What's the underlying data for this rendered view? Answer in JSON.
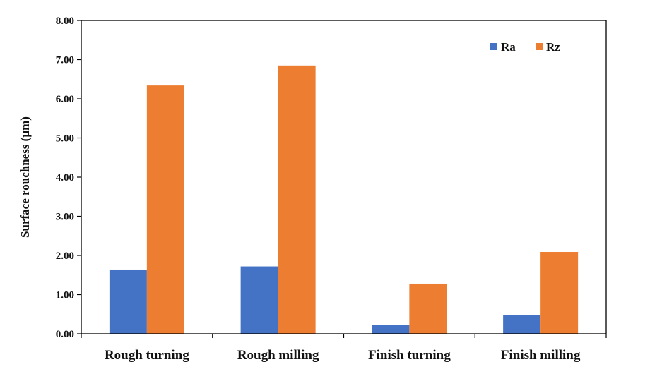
{
  "chart_data": {
    "type": "bar",
    "categories": [
      "Rough turning",
      "Rough milling",
      "Finish turning",
      "Finish milling"
    ],
    "series": [
      {
        "name": "Ra",
        "color": "#4472C4",
        "values": [
          1.64,
          1.72,
          0.23,
          0.48
        ]
      },
      {
        "name": "Rz",
        "color": "#ED7D31",
        "values": [
          6.34,
          6.85,
          1.28,
          2.09
        ]
      }
    ],
    "title": "",
    "xlabel": "",
    "ylabel": "Surface rouchness (µm)",
    "ylim": [
      0,
      8
    ],
    "yticks": [
      "0.00",
      "1.00",
      "2.00",
      "3.00",
      "4.00",
      "5.00",
      "6.00",
      "7.00",
      "8.00"
    ],
    "grid": false,
    "legend_position": "top-right"
  }
}
